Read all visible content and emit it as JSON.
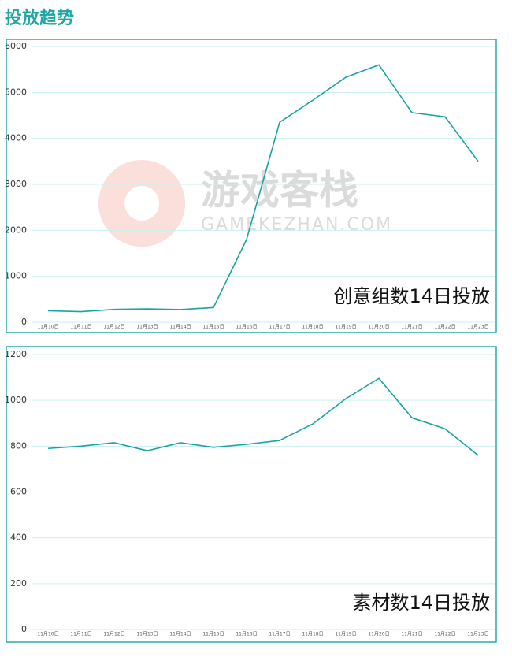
{
  "header": {
    "title": "投放趋势"
  },
  "watermark": {
    "name": "游戏客栈",
    "url": "GAMEKEZHAN.COM"
  },
  "chart_data": [
    {
      "type": "line",
      "annotation": "创意组数14日投放",
      "categories": [
        "11月10日",
        "11月11日",
        "11月12日",
        "11月13日",
        "11月14日",
        "11月15日",
        "11月16日",
        "11月17日",
        "11月18日",
        "11月19日",
        "11月20日",
        "11月21日",
        "11月22日",
        "11月23日"
      ],
      "values": [
        250,
        230,
        280,
        290,
        275,
        320,
        1800,
        4350,
        4830,
        5330,
        5600,
        4560,
        4470,
        3500
      ],
      "color": "#1aa3a3",
      "ylim": [
        0,
        6000
      ],
      "yticks": [
        0,
        1000,
        2000,
        3000,
        4000,
        5000,
        6000
      ],
      "grid": true
    },
    {
      "type": "line",
      "annotation": "素材数14日投放",
      "categories": [
        "11月10日",
        "11月11日",
        "11月12日",
        "11月13日",
        "11月14日",
        "11月15日",
        "11月16日",
        "11月17日",
        "11月18日",
        "11月19日",
        "11月20日",
        "11月21日",
        "11月22日",
        "11月23日"
      ],
      "values": [
        790,
        800,
        815,
        780,
        815,
        795,
        808,
        825,
        897,
        1007,
        1096,
        924,
        876,
        760
      ],
      "color": "#1aa3a3",
      "ylim": [
        0,
        1200
      ],
      "yticks": [
        0,
        200,
        400,
        600,
        800,
        1000,
        1200
      ],
      "grid": true
    }
  ]
}
